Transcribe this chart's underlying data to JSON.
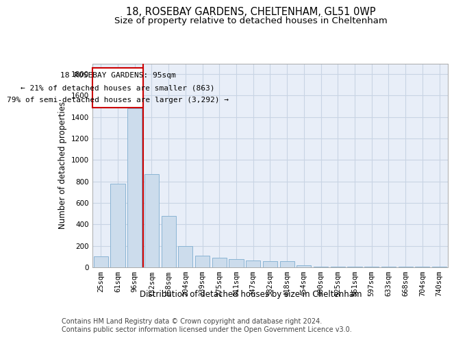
{
  "title_line1": "18, ROSEBAY GARDENS, CHELTENHAM, GL51 0WP",
  "title_line2": "Size of property relative to detached houses in Cheltenham",
  "xlabel": "Distribution of detached houses by size in Cheltenham",
  "ylabel": "Number of detached properties",
  "categories": [
    "25sqm",
    "61sqm",
    "96sqm",
    "132sqm",
    "168sqm",
    "204sqm",
    "239sqm",
    "275sqm",
    "311sqm",
    "347sqm",
    "382sqm",
    "418sqm",
    "454sqm",
    "490sqm",
    "525sqm",
    "561sqm",
    "597sqm",
    "633sqm",
    "668sqm",
    "704sqm",
    "740sqm"
  ],
  "values": [
    100,
    780,
    1480,
    870,
    480,
    200,
    110,
    90,
    75,
    65,
    55,
    55,
    20,
    5,
    5,
    5,
    5,
    5,
    5,
    5,
    5
  ],
  "bar_color": "#ccdcec",
  "bar_edge_color": "#8ab4d4",
  "grid_color": "#c8d4e4",
  "annotation_box_color": "#cc0000",
  "annotation_text_line1": "18 ROSEBAY GARDENS: 95sqm",
  "annotation_text_line2": "← 21% of detached houses are smaller (863)",
  "annotation_text_line3": "79% of semi-detached houses are larger (3,292) →",
  "marker_bar_index": 2,
  "marker_line_color": "#cc0000",
  "ylim": [
    0,
    1900
  ],
  "yticks": [
    0,
    200,
    400,
    600,
    800,
    1000,
    1200,
    1400,
    1600,
    1800
  ],
  "footer_line1": "Contains HM Land Registry data © Crown copyright and database right 2024.",
  "footer_line2": "Contains public sector information licensed under the Open Government Licence v3.0.",
  "plot_bg_color": "#e8eef8",
  "title_fontsize": 10.5,
  "subtitle_fontsize": 9.5,
  "axis_label_fontsize": 8.5,
  "tick_fontsize": 7.5,
  "annotation_fontsize": 8,
  "footer_fontsize": 7
}
